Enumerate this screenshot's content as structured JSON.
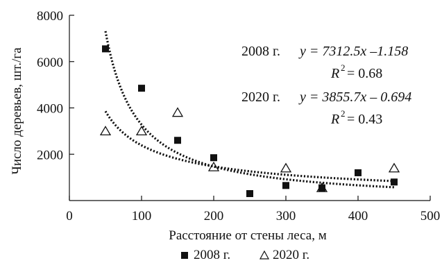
{
  "chart_data": {
    "type": "scatter",
    "xlabel": "Расстояние от стены леса, м",
    "ylabel": "Число деревьев, шт./га",
    "xlim": [
      0,
      500
    ],
    "ylim": [
      0,
      8000
    ],
    "x_ticks": [
      0,
      100,
      200,
      300,
      400,
      500
    ],
    "y_ticks": [
      2000,
      4000,
      6000,
      8000
    ],
    "grid": false,
    "legend_position": "bottom",
    "series": [
      {
        "name": "2008 г.",
        "marker": "filled-square",
        "x": [
          50,
          100,
          150,
          200,
          250,
          300,
          350,
          400,
          450
        ],
        "y": [
          6550,
          4850,
          2600,
          1850,
          300,
          650,
          550,
          1200,
          800
        ],
        "trend": {
          "type": "power",
          "a": 7312.5,
          "b": -1.158,
          "r2": 0.68
        }
      },
      {
        "name": "2020 г.",
        "marker": "open-triangle",
        "x": [
          50,
          100,
          150,
          200,
          300,
          350,
          450
        ],
        "y": [
          3000,
          3000,
          3800,
          1450,
          1400,
          550,
          1400
        ],
        "trend": {
          "type": "power",
          "a": 3855.7,
          "b": -0.694,
          "r2": 0.43
        }
      }
    ],
    "annotations": {
      "eq2008_year": "2008 г.",
      "eq2008_formula": "y = 7312.5x –1.158",
      "eq2008_r2": "= 0.68",
      "eq2020_year": "2020 г.",
      "eq2020_formula": "y = 3855.7x – 0.694",
      "eq2020_r2": "= 0.43"
    }
  }
}
